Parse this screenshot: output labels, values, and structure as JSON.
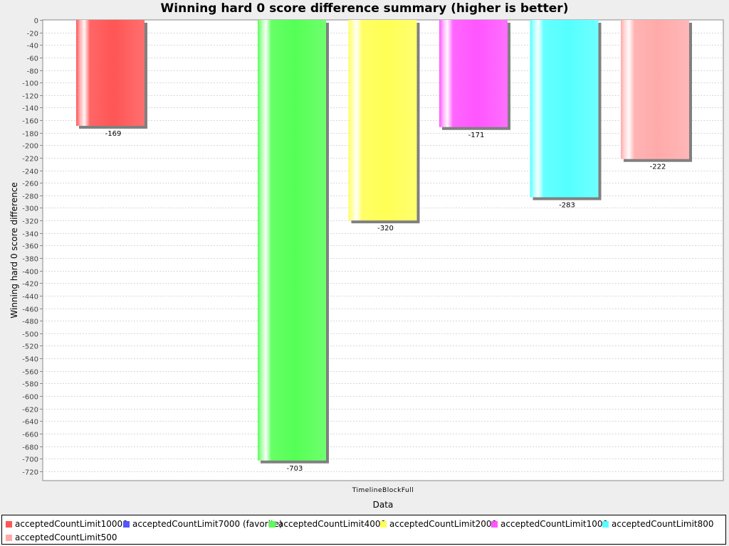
{
  "chart_data": {
    "type": "bar",
    "title": "Winning hard 0 score difference summary (higher is better)",
    "xlabel": "Data",
    "ylabel": "Winning hard 0 score difference",
    "categories": [
      "TimelineBlockFull"
    ],
    "ylim": [
      -735,
      0
    ],
    "ytick_step": 20,
    "grid": true,
    "legend_position": "bottom",
    "series": [
      {
        "name": "acceptedCountLimit10000",
        "values": [
          -169
        ],
        "color": "#ff5555"
      },
      {
        "name": "acceptedCountLimit7000 (favorite)",
        "values": [
          null
        ],
        "color": "#5555ff"
      },
      {
        "name": "acceptedCountLimit4000",
        "values": [
          -703
        ],
        "color": "#55ff55"
      },
      {
        "name": "acceptedCountLimit2000",
        "values": [
          -320
        ],
        "color": "#ffff55"
      },
      {
        "name": "acceptedCountLimit1000",
        "values": [
          -171
        ],
        "color": "#ff55ff"
      },
      {
        "name": "acceptedCountLimit800",
        "values": [
          -283
        ],
        "color": "#55ffff"
      },
      {
        "name": "acceptedCountLimit500",
        "values": [
          -222
        ],
        "color": "#ffaaaa"
      }
    ]
  }
}
